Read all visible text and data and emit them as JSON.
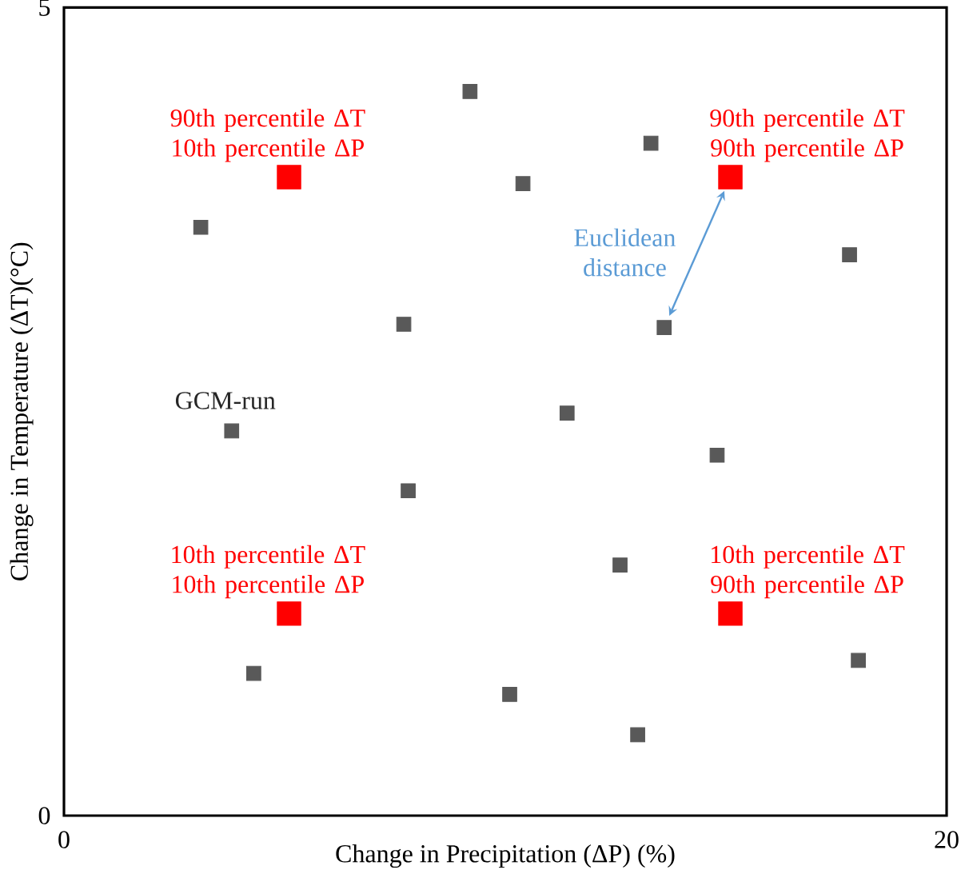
{
  "chart_data": {
    "type": "scatter",
    "xlabel": "Change in Precipitation (ΔP) (%)",
    "ylabel": "Change in Temperature (ΔT)(°C)",
    "xlim": [
      0,
      20
    ],
    "ylim": [
      0,
      5
    ],
    "xticks": [
      0,
      20
    ],
    "yticks": [
      0,
      5
    ],
    "marker": "square",
    "series": [
      {
        "name": "GCM-run",
        "color": "#595959",
        "x": [
          3.8,
          9.2,
          3.1,
          10.4,
          13.3,
          17.8,
          7.7,
          13.6,
          11.4,
          14.8,
          7.8,
          12.6,
          4.3,
          10.1,
          13.0,
          18.0
        ],
        "values": [
          2.38,
          4.48,
          3.64,
          3.91,
          4.16,
          3.47,
          3.04,
          3.02,
          2.49,
          2.23,
          2.01,
          1.55,
          0.88,
          0.75,
          0.5,
          0.96
        ]
      },
      {
        "color": "#ff0000",
        "x": [
          5.1,
          15.1,
          5.1,
          15.1
        ],
        "values": [
          3.95,
          3.95,
          1.25,
          1.25
        ]
      }
    ],
    "annotations": [
      {
        "text": "90th percentile ΔT 10th percentile ΔP",
        "x": 5.1,
        "y": 3.95
      },
      {
        "text": "90th percentile ΔT 90th percentile ΔP",
        "x": 15.1,
        "y": 3.95
      },
      {
        "text": "10th percentile ΔT 10th percentile ΔP",
        "x": 5.1,
        "y": 1.25
      },
      {
        "text": "10th percentile ΔT 90th percentile ΔP",
        "x": 15.1,
        "y": 1.25
      },
      {
        "text": "Euclidean distance",
        "x": 13.6,
        "y": 3.02
      }
    ]
  }
}
